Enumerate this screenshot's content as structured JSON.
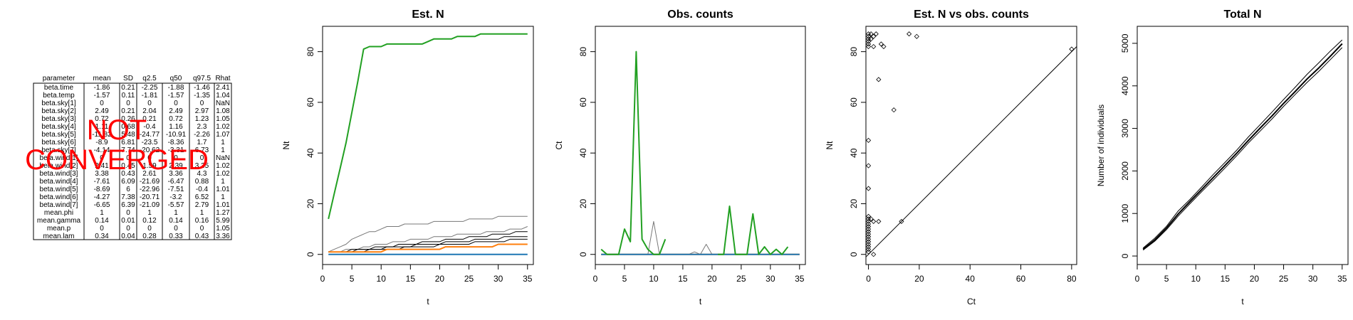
{
  "summary_table": {
    "headers": [
      "parameter",
      "mean",
      "SD",
      "q2.5",
      "q50",
      "q97.5",
      "Rhat"
    ],
    "rows": [
      [
        "beta.time",
        "-1.86",
        "0.21",
        "-2.25",
        "-1.88",
        "-1.46",
        "2.41"
      ],
      [
        "beta.temp",
        "-1.57",
        "0.11",
        "-1.81",
        "-1.57",
        "-1.35",
        "1.04"
      ],
      [
        "beta.sky[1]",
        "0",
        "0",
        "0",
        "0",
        "0",
        "NaN"
      ],
      [
        "beta.sky[2]",
        "2.49",
        "0.21",
        "2.04",
        "2.49",
        "2.97",
        "1.08"
      ],
      [
        "beta.sky[3]",
        "0.72",
        "0.26",
        "0.21",
        "0.72",
        "1.23",
        "1.05"
      ],
      [
        "beta.sky[4]",
        "1.11",
        "0.68",
        "-0.4",
        "1.16",
        "2.3",
        "1.02"
      ],
      [
        "beta.sky[5]",
        "-11.82",
        "5.48",
        "-24.77",
        "-10.91",
        "-2.26",
        "1.07"
      ],
      [
        "beta.sky[6]",
        "-8.9",
        "6.81",
        "-23.5",
        "-8.36",
        "1.7",
        "1"
      ],
      [
        "beta.sky[7]",
        "-4.14",
        "7.74",
        "-20.62",
        "-3.31",
        "6.73",
        "1"
      ],
      [
        "beta.wind[1]",
        "0",
        "0",
        "0",
        "0",
        "0",
        "NaN"
      ],
      [
        "beta.wind[2]",
        "2.41",
        "0.45",
        "1.59",
        "2.39",
        "3.35",
        "1.02"
      ],
      [
        "beta.wind[3]",
        "3.38",
        "0.43",
        "2.61",
        "3.36",
        "4.3",
        "1.02"
      ],
      [
        "beta.wind[4]",
        "-7.61",
        "6.09",
        "-21.69",
        "-6.47",
        "0.88",
        "1"
      ],
      [
        "beta.wind[5]",
        "-8.69",
        "6",
        "-22.96",
        "-7.51",
        "-0.4",
        "1.01"
      ],
      [
        "beta.wind[6]",
        "-4.27",
        "7.38",
        "-20.71",
        "-3.2",
        "6.52",
        "1"
      ],
      [
        "beta.wind[7]",
        "-6.65",
        "6.39",
        "-21.09",
        "-5.57",
        "2.79",
        "1.01"
      ],
      [
        "mean.phi",
        "1",
        "0",
        "1",
        "1",
        "1",
        "1.27"
      ],
      [
        "mean.gamma",
        "0.14",
        "0.01",
        "0.12",
        "0.14",
        "0.16",
        "5.99"
      ],
      [
        "mean.p",
        "0",
        "0",
        "0",
        "0",
        "0",
        "1.05"
      ],
      [
        "mean.lam",
        "0.34",
        "0.04",
        "0.28",
        "0.33",
        "0.43",
        "3.36"
      ]
    ],
    "stamp_line1": "NOT",
    "stamp_line2": "CONVERGED",
    "stamp_color": "#ff0000"
  },
  "colors": {
    "green": "#22a022",
    "orange": "#ff7f0e",
    "blue": "#1f77b4",
    "gray": "#777777",
    "black": "#000000"
  },
  "chart_data": [
    {
      "type": "line",
      "title": "Est. N",
      "xlabel": "t",
      "ylabel": "Nt",
      "xlim": [
        0,
        36
      ],
      "ylim": [
        -4,
        90
      ],
      "xticks": [
        0,
        5,
        10,
        15,
        20,
        25,
        30,
        35
      ],
      "yticks": [
        0,
        20,
        40,
        60,
        80
      ],
      "x": [
        1,
        2,
        3,
        4,
        5,
        6,
        7,
        8,
        9,
        10,
        11,
        12,
        13,
        14,
        15,
        16,
        17,
        18,
        19,
        20,
        21,
        22,
        23,
        24,
        25,
        26,
        27,
        28,
        29,
        30,
        31,
        32,
        33,
        34,
        35
      ],
      "series": [
        {
          "color": "green",
          "width": 2,
          "values": [
            14,
            24,
            34,
            44,
            56,
            68,
            81,
            82,
            82,
            82,
            83,
            83,
            83,
            83,
            83,
            83,
            83,
            84,
            85,
            85,
            85,
            85,
            86,
            86,
            86,
            86,
            87,
            87,
            87,
            87,
            87,
            87,
            87,
            87,
            87
          ]
        },
        {
          "color": "gray",
          "width": 1,
          "values": [
            1,
            2,
            3,
            4,
            6,
            7,
            8,
            9,
            9,
            10,
            11,
            11,
            11,
            12,
            12,
            12,
            12,
            12,
            13,
            13,
            13,
            13,
            13,
            13,
            14,
            14,
            14,
            14,
            14,
            15,
            15,
            15,
            15,
            15,
            15
          ]
        },
        {
          "color": "gray",
          "width": 1,
          "values": [
            1,
            1,
            1,
            2,
            2,
            2,
            3,
            3,
            4,
            4,
            4,
            5,
            5,
            5,
            6,
            6,
            6,
            6,
            7,
            7,
            7,
            7,
            8,
            8,
            8,
            8,
            8,
            9,
            9,
            9,
            9,
            10,
            10,
            10,
            11
          ]
        },
        {
          "color": "black",
          "width": 1,
          "values": [
            1,
            1,
            1,
            1,
            2,
            2,
            2,
            2,
            3,
            3,
            3,
            3,
            4,
            4,
            4,
            4,
            5,
            5,
            5,
            5,
            6,
            6,
            6,
            6,
            7,
            7,
            7,
            7,
            8,
            8,
            8,
            8,
            9,
            9,
            9
          ]
        },
        {
          "color": "black",
          "width": 1,
          "values": [
            1,
            1,
            1,
            1,
            1,
            2,
            2,
            2,
            2,
            2,
            3,
            3,
            3,
            3,
            3,
            4,
            4,
            4,
            4,
            4,
            5,
            5,
            5,
            5,
            5,
            6,
            6,
            6,
            6,
            6,
            7,
            7,
            7,
            7,
            7
          ]
        },
        {
          "color": "black",
          "width": 1,
          "values": [
            1,
            1,
            1,
            1,
            1,
            1,
            1,
            2,
            2,
            2,
            2,
            2,
            2,
            3,
            3,
            3,
            3,
            3,
            3,
            4,
            4,
            4,
            4,
            4,
            4,
            5,
            5,
            5,
            5,
            5,
            5,
            6,
            6,
            6,
            6
          ]
        },
        {
          "color": "orange",
          "width": 2,
          "values": [
            1,
            1,
            1,
            1,
            1,
            1,
            1,
            1,
            1,
            1,
            2,
            2,
            2,
            2,
            2,
            2,
            2,
            2,
            2,
            2,
            3,
            3,
            3,
            3,
            3,
            3,
            3,
            3,
            3,
            4,
            4,
            4,
            4,
            4,
            4
          ]
        },
        {
          "color": "blue",
          "width": 2,
          "values": [
            0,
            0,
            0,
            0,
            0,
            0,
            0,
            0,
            0,
            0,
            0,
            0,
            0,
            0,
            0,
            0,
            0,
            0,
            0,
            0,
            0,
            0,
            0,
            0,
            0,
            0,
            0,
            0,
            0,
            0,
            0,
            0,
            0,
            0,
            0
          ]
        }
      ]
    },
    {
      "type": "line",
      "title": "Obs. counts",
      "xlabel": "t",
      "ylabel": "Ct",
      "xlim": [
        0,
        36
      ],
      "ylim": [
        -4,
        90
      ],
      "xticks": [
        0,
        5,
        10,
        15,
        20,
        25,
        30,
        35
      ],
      "yticks": [
        0,
        20,
        40,
        60,
        80
      ],
      "x": [
        1,
        2,
        3,
        4,
        5,
        6,
        7,
        8,
        9,
        10,
        11,
        12,
        13,
        14,
        15,
        16,
        17,
        18,
        19,
        20,
        21,
        22,
        23,
        24,
        25,
        26,
        27,
        28,
        29,
        30,
        31,
        32,
        33,
        34,
        35
      ],
      "series": [
        {
          "color": "gray",
          "width": 1,
          "values": [
            0,
            0,
            0,
            0,
            0,
            0,
            0,
            0,
            0,
            13,
            0,
            0,
            0,
            0,
            0,
            0,
            1,
            0,
            4,
            0,
            0,
            0,
            0,
            0,
            0,
            0,
            0,
            0,
            0,
            0,
            0,
            0,
            0,
            0,
            0
          ]
        },
        {
          "color": "orange",
          "width": 2,
          "values": [
            0,
            0,
            0,
            0,
            0,
            0,
            0,
            0,
            0,
            0,
            0,
            0,
            0,
            0,
            0,
            0,
            0,
            0,
            0,
            0,
            0,
            0,
            0,
            0,
            0,
            0,
            0,
            0,
            0,
            0,
            0,
            0,
            0,
            0,
            0
          ]
        },
        {
          "color": "blue",
          "width": 2,
          "values": [
            0,
            0,
            0,
            0,
            0,
            0,
            0,
            0,
            0,
            0,
            0,
            0,
            0,
            0,
            0,
            0,
            0,
            0,
            0,
            0,
            0,
            0,
            0,
            0,
            0,
            0,
            0,
            0,
            0,
            0,
            0,
            0,
            0,
            0,
            0
          ]
        },
        {
          "color": "green",
          "width": 2,
          "values": [
            2,
            0,
            0,
            0,
            10,
            5,
            80,
            6,
            2,
            0,
            0,
            6,
            null,
            null,
            null,
            null,
            null,
            null,
            null,
            null,
            0,
            0,
            19,
            0,
            0,
            0,
            16,
            0,
            3,
            0,
            2,
            0,
            3,
            null,
            null
          ]
        }
      ]
    },
    {
      "type": "scatter",
      "title": "Est. N vs obs. counts",
      "xlabel": "Ct",
      "ylabel": "Nt",
      "xlim": [
        -1,
        82
      ],
      "ylim": [
        -4,
        90
      ],
      "xticks": [
        0,
        20,
        40,
        60,
        80
      ],
      "yticks": [
        0,
        20,
        40,
        60,
        80
      ],
      "identity_line": true,
      "points": [
        [
          0,
          87
        ],
        [
          0,
          86
        ],
        [
          0,
          85
        ],
        [
          0,
          84
        ],
        [
          0,
          83
        ],
        [
          0,
          82
        ],
        [
          1,
          87
        ],
        [
          1,
          85
        ],
        [
          2,
          86
        ],
        [
          2,
          82
        ],
        [
          3,
          87
        ],
        [
          5,
          83
        ],
        [
          6,
          82
        ],
        [
          4,
          69
        ],
        [
          10,
          57
        ],
        [
          16,
          87
        ],
        [
          19,
          86
        ],
        [
          80,
          81
        ],
        [
          0,
          45
        ],
        [
          0,
          35
        ],
        [
          0,
          26
        ],
        [
          0,
          15
        ],
        [
          0,
          14
        ],
        [
          0,
          13
        ],
        [
          0,
          12
        ],
        [
          0,
          11
        ],
        [
          0,
          10
        ],
        [
          0,
          9
        ],
        [
          0,
          8
        ],
        [
          0,
          7
        ],
        [
          0,
          6
        ],
        [
          0,
          5
        ],
        [
          0,
          4
        ],
        [
          0,
          3
        ],
        [
          0,
          2
        ],
        [
          0,
          1
        ],
        [
          1,
          14
        ],
        [
          2,
          13
        ],
        [
          4,
          13
        ],
        [
          2,
          0
        ],
        [
          13,
          13
        ]
      ]
    },
    {
      "type": "line",
      "title": "Total N",
      "xlabel": "t",
      "ylabel": "Number of individuals",
      "xlim": [
        0,
        36
      ],
      "ylim": [
        -200,
        5400
      ],
      "xticks": [
        0,
        5,
        10,
        15,
        20,
        25,
        30,
        35
      ],
      "yticks": [
        0,
        1000,
        2000,
        3000,
        4000,
        5000
      ],
      "x": [
        1,
        3,
        5,
        7,
        9,
        11,
        13,
        15,
        17,
        19,
        21,
        23,
        25,
        27,
        29,
        31,
        33,
        35
      ],
      "series": [
        {
          "color": "black",
          "width": 1,
          "values": [
            190,
            420,
            700,
            1060,
            1330,
            1620,
            1920,
            2200,
            2490,
            2800,
            3090,
            3380,
            3680,
            3970,
            4270,
            4540,
            4820,
            5080
          ]
        },
        {
          "color": "black",
          "width": 2,
          "values": [
            160,
            380,
            660,
            990,
            1280,
            1560,
            1850,
            2130,
            2420,
            2720,
            3010,
            3290,
            3590,
            3870,
            4160,
            4420,
            4700,
            4990
          ]
        },
        {
          "color": "black",
          "width": 1,
          "values": [
            140,
            350,
            620,
            940,
            1230,
            1510,
            1790,
            2070,
            2360,
            2660,
            2940,
            3220,
            3520,
            3800,
            4080,
            4340,
            4620,
            4900
          ]
        }
      ]
    }
  ]
}
